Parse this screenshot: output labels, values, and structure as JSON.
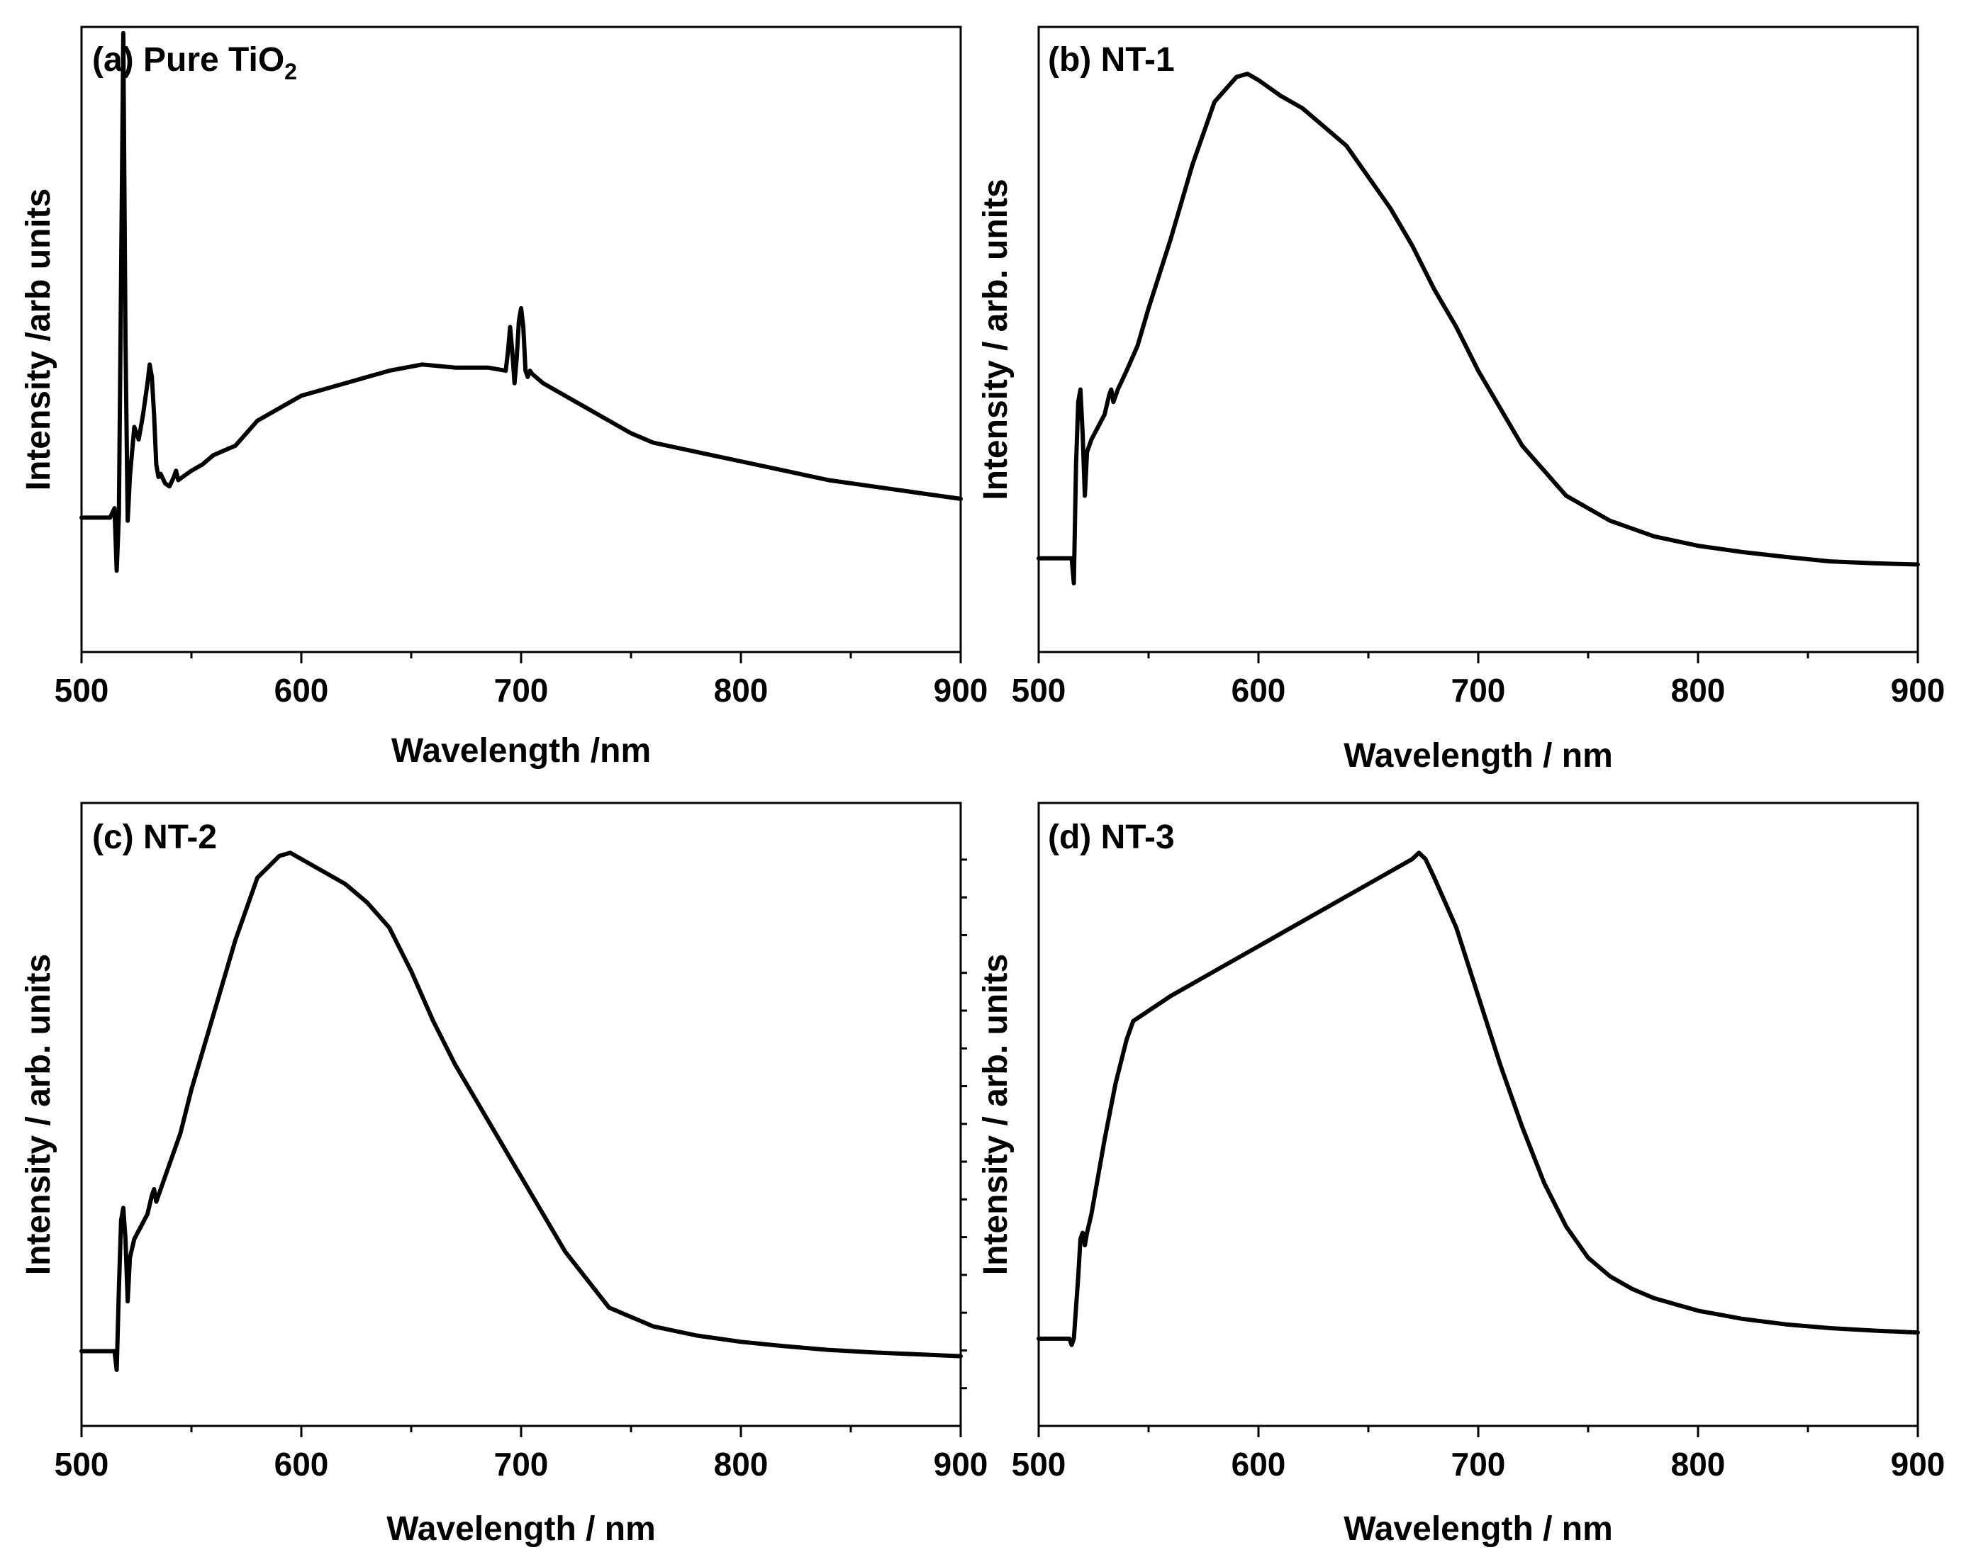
{
  "chart_data": [
    {
      "type": "line",
      "label": "(a) Pure TiO",
      "label_sub": "2",
      "xlabel": "Wavelength /nm",
      "ylabel": "Intensity /arb units",
      "xlim": [
        500,
        900
      ],
      "ylim": [
        0,
        1
      ],
      "xticks": [
        500,
        600,
        700,
        800,
        900
      ],
      "x": [
        500,
        513,
        515,
        516,
        517,
        518,
        519,
        520,
        521,
        522,
        524,
        526,
        528,
        530,
        531,
        532,
        533,
        534,
        535,
        536,
        538,
        540,
        542,
        543,
        544,
        546,
        550,
        555,
        560,
        570,
        580,
        590,
        600,
        620,
        640,
        655,
        670,
        685,
        693,
        694,
        695,
        696,
        697,
        698,
        699,
        700,
        701,
        702,
        703,
        704,
        705,
        710,
        720,
        730,
        740,
        750,
        760,
        780,
        800,
        820,
        840,
        860,
        880,
        900
      ],
      "y": [
        0.215,
        0.215,
        0.23,
        0.13,
        0.22,
        0.6,
        0.99,
        0.5,
        0.21,
        0.28,
        0.36,
        0.34,
        0.38,
        0.43,
        0.46,
        0.44,
        0.38,
        0.3,
        0.28,
        0.285,
        0.27,
        0.265,
        0.28,
        0.29,
        0.275,
        0.28,
        0.29,
        0.3,
        0.315,
        0.33,
        0.37,
        0.39,
        0.41,
        0.43,
        0.45,
        0.46,
        0.455,
        0.455,
        0.45,
        0.48,
        0.52,
        0.48,
        0.43,
        0.47,
        0.53,
        0.55,
        0.52,
        0.45,
        0.44,
        0.45,
        0.445,
        0.43,
        0.41,
        0.39,
        0.37,
        0.35,
        0.335,
        0.32,
        0.305,
        0.29,
        0.275,
        0.265,
        0.255,
        0.245
      ]
    },
    {
      "type": "line",
      "label": "(b) NT-1",
      "xlabel": "Wavelength / nm",
      "ylabel": "Intensity / arb. units",
      "xlim": [
        500,
        900
      ],
      "ylim": [
        0,
        1
      ],
      "xticks": [
        500,
        600,
        700,
        800,
        900
      ],
      "x": [
        500,
        515,
        516,
        517,
        518,
        519,
        520,
        521,
        522,
        524,
        527,
        530,
        532,
        533,
        534,
        536,
        540,
        545,
        550,
        560,
        570,
        580,
        590,
        595,
        600,
        610,
        620,
        630,
        640,
        650,
        660,
        670,
        680,
        690,
        700,
        720,
        740,
        760,
        780,
        800,
        820,
        840,
        860,
        880,
        900
      ],
      "y": [
        0.15,
        0.15,
        0.11,
        0.3,
        0.4,
        0.42,
        0.35,
        0.25,
        0.32,
        0.34,
        0.36,
        0.38,
        0.41,
        0.42,
        0.4,
        0.42,
        0.45,
        0.49,
        0.55,
        0.66,
        0.78,
        0.88,
        0.92,
        0.925,
        0.915,
        0.89,
        0.87,
        0.84,
        0.81,
        0.76,
        0.71,
        0.65,
        0.58,
        0.52,
        0.45,
        0.33,
        0.25,
        0.21,
        0.185,
        0.17,
        0.16,
        0.152,
        0.145,
        0.142,
        0.14
      ]
    },
    {
      "type": "line",
      "label": "(c) NT-2",
      "xlabel": "Wavelength / nm",
      "ylabel": "Intensity / arb. units",
      "xlim": [
        500,
        900
      ],
      "ylim": [
        0,
        1
      ],
      "xticks": [
        500,
        600,
        700,
        800,
        900
      ],
      "x": [
        500,
        515,
        516,
        517,
        518,
        519,
        520,
        521,
        522,
        524,
        527,
        530,
        532,
        533,
        534,
        536,
        540,
        545,
        550,
        560,
        570,
        580,
        590,
        595,
        600,
        610,
        620,
        630,
        640,
        650,
        660,
        670,
        680,
        690,
        700,
        720,
        740,
        760,
        780,
        800,
        820,
        840,
        860,
        880,
        900
      ],
      "y": [
        0.12,
        0.12,
        0.09,
        0.22,
        0.33,
        0.35,
        0.3,
        0.2,
        0.27,
        0.3,
        0.32,
        0.34,
        0.37,
        0.38,
        0.36,
        0.38,
        0.42,
        0.47,
        0.54,
        0.66,
        0.78,
        0.88,
        0.915,
        0.92,
        0.91,
        0.89,
        0.87,
        0.84,
        0.8,
        0.73,
        0.65,
        0.58,
        0.52,
        0.46,
        0.4,
        0.28,
        0.19,
        0.16,
        0.145,
        0.135,
        0.128,
        0.122,
        0.118,
        0.115,
        0.112
      ]
    },
    {
      "type": "line",
      "label": "(d) NT-3",
      "xlabel": "Wavelength / nm",
      "ylabel": "Intensity / arb. units",
      "xlim": [
        500,
        900
      ],
      "ylim": [
        0,
        1
      ],
      "xticks": [
        500,
        600,
        700,
        800,
        900
      ],
      "x": [
        500,
        514,
        515,
        516,
        518,
        519,
        520,
        521,
        522,
        524,
        530,
        535,
        540,
        543,
        560,
        580,
        600,
        620,
        640,
        660,
        670,
        673,
        676,
        680,
        690,
        700,
        710,
        720,
        730,
        740,
        750,
        760,
        770,
        780,
        790,
        800,
        820,
        840,
        860,
        880,
        900
      ],
      "y": [
        0.14,
        0.14,
        0.13,
        0.14,
        0.24,
        0.3,
        0.31,
        0.29,
        0.31,
        0.34,
        0.46,
        0.55,
        0.62,
        0.65,
        0.69,
        0.73,
        0.77,
        0.81,
        0.85,
        0.89,
        0.91,
        0.92,
        0.91,
        0.88,
        0.8,
        0.69,
        0.58,
        0.48,
        0.39,
        0.32,
        0.27,
        0.24,
        0.22,
        0.205,
        0.195,
        0.185,
        0.172,
        0.163,
        0.157,
        0.153,
        0.15
      ]
    }
  ]
}
